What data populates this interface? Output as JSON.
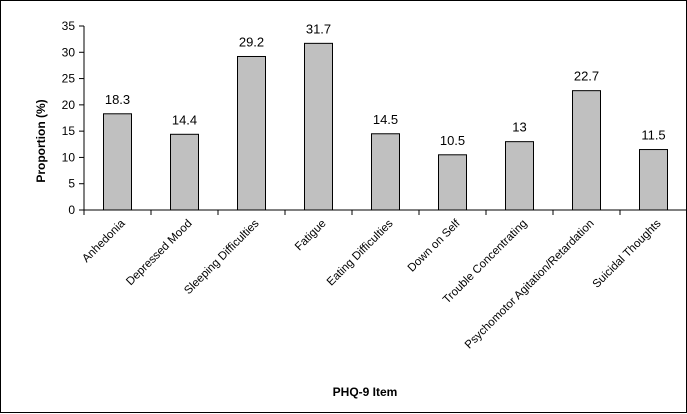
{
  "chart_data": {
    "type": "bar",
    "title": "",
    "xlabel": "PHQ-9 Item",
    "ylabel": "Proportion (%)",
    "ylim": [
      0,
      35
    ],
    "yticks": [
      0,
      5,
      10,
      15,
      20,
      25,
      30,
      35
    ],
    "grid": false,
    "legend": "none",
    "categories": [
      "Anhedonia",
      "Depressed Mood",
      "Sleeping Difficulties",
      "Fatigue",
      "Eating Difficulties",
      "Down on Self",
      "Trouble Concentrating",
      "Psychomotor Agitation/Retardation",
      "Suicidal Thoughts"
    ],
    "values": [
      18.3,
      14.4,
      29.2,
      31.7,
      14.5,
      10.5,
      13,
      22.7,
      11.5
    ],
    "data_labels": [
      "18.3",
      "14.4",
      "29.2",
      "31.7",
      "14.5",
      "10.5",
      "13",
      "22.7",
      "11.5"
    ],
    "colors": {
      "bar_fill": "#c0c0c0",
      "bar_stroke": "#000000",
      "axis": "#000000"
    }
  }
}
